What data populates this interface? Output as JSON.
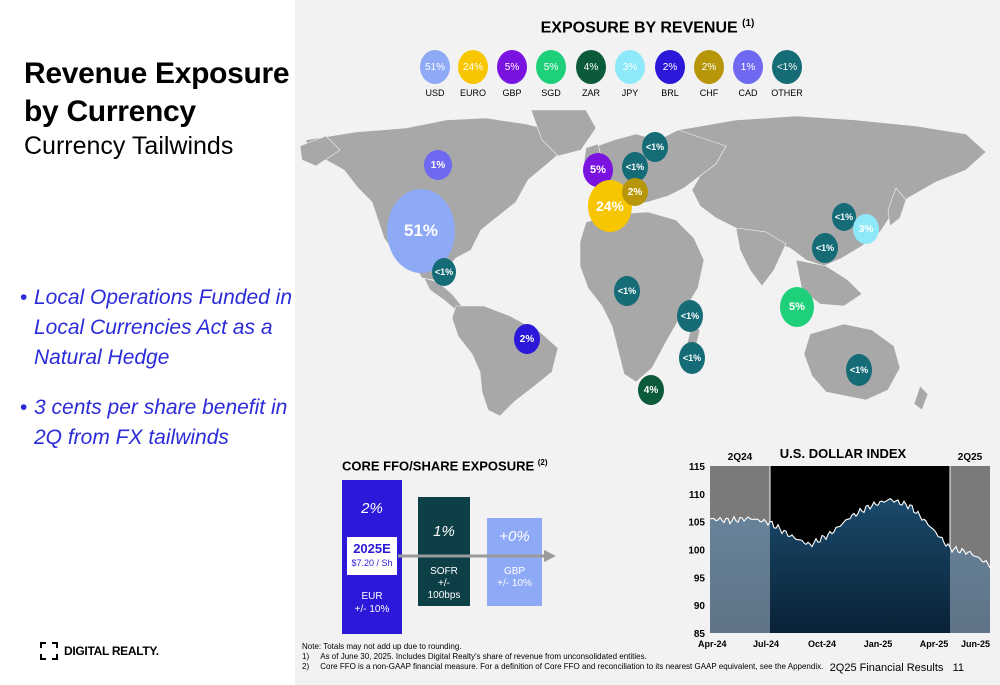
{
  "left": {
    "title_line1": "Revenue Exposure",
    "title_line2": "by Currency",
    "subtitle": "Currency Tailwinds",
    "bullets": [
      "Local Operations Funded in Local Currencies Act as a Natural Hedge",
      "3 cents per share benefit in 2Q from FX tailwinds"
    ],
    "logo_text": "DIGITAL REALTY."
  },
  "exposure": {
    "title": "EXPOSURE BY REVENUE",
    "title_note": "(1)",
    "legend": [
      {
        "value": "51%",
        "label": "USD",
        "color": "#8eaaf6"
      },
      {
        "value": "24%",
        "label": "EURO",
        "color": "#f7c600"
      },
      {
        "value": "5%",
        "label": "GBP",
        "color": "#7a12e0"
      },
      {
        "value": "5%",
        "label": "SGD",
        "color": "#1fd07a"
      },
      {
        "value": "4%",
        "label": "ZAR",
        "color": "#0b5a3a"
      },
      {
        "value": "3%",
        "label": "JPY",
        "color": "#8de8fa"
      },
      {
        "value": "2%",
        "label": "BRL",
        "color": "#2b18d8"
      },
      {
        "value": "2%",
        "label": "CHF",
        "color": "#b8960a"
      },
      {
        "value": "1%",
        "label": "CAD",
        "color": "#6f68f0"
      },
      {
        "value": "<1%",
        "label": "OTHER",
        "color": "#156b76"
      }
    ],
    "map_bubbles": [
      {
        "text": "51%",
        "color": "#8eaaf6"
      },
      {
        "text": "1%",
        "color": "#6f68f0"
      },
      {
        "text": "<1%",
        "color": "#156b76"
      },
      {
        "text": "2%",
        "color": "#2b18d8"
      },
      {
        "text": "5%",
        "color": "#7a12e0"
      },
      {
        "text": "<1%",
        "color": "#156b76"
      },
      {
        "text": "<1%",
        "color": "#156b76"
      },
      {
        "text": "24%",
        "color": "#f7c600"
      },
      {
        "text": "2%",
        "color": "#b8960a"
      },
      {
        "text": "<1%",
        "color": "#156b76"
      },
      {
        "text": "<1%",
        "color": "#156b76"
      },
      {
        "text": "<1%",
        "color": "#156b76"
      },
      {
        "text": "4%",
        "color": "#0b5a3a"
      },
      {
        "text": "<1%",
        "color": "#156b76"
      },
      {
        "text": "3%",
        "color": "#8de8fa"
      },
      {
        "text": "<1%",
        "color": "#156b76"
      },
      {
        "text": "5%",
        "color": "#1fd07a"
      },
      {
        "text": "<1%",
        "color": "#156b76"
      }
    ]
  },
  "core_ffo": {
    "title": "CORE FFO/SHARE EXPOSURE",
    "title_note": "(2)",
    "eur": {
      "pct": "2%",
      "label": "EUR",
      "range": "+/- 10%",
      "color": "#2b18d8"
    },
    "estimate": {
      "label": "2025E",
      "value": "$7.20 / Sh"
    },
    "sofr": {
      "pct": "1%",
      "label": "SOFR",
      "range": "+/-",
      "range2": "100bps",
      "color": "#0d3f47"
    },
    "gbp": {
      "pct": "+0%",
      "label": "GBP",
      "range": "+/- 10%",
      "color": "#8eaaf6"
    }
  },
  "chart_data": {
    "type": "line",
    "title": "U.S. DOLLAR  INDEX",
    "period_labels": [
      "2Q24",
      "2Q25"
    ],
    "x_ticks": [
      "Apr-24",
      "Jul-24",
      "Oct-24",
      "Jan-25",
      "Apr-25",
      "Jun-25"
    ],
    "ylim": [
      85,
      115
    ],
    "y_ticks": [
      85,
      90,
      95,
      100,
      105,
      110,
      115
    ],
    "x": [
      "Apr-24",
      "May-24",
      "Jun-24",
      "Jul-24",
      "Aug-24",
      "Sep-24",
      "Oct-24",
      "Nov-24",
      "Dec-24",
      "Jan-25",
      "Feb-25",
      "Mar-25",
      "Apr-25",
      "May-25",
      "Jun-25"
    ],
    "values": [
      105.5,
      105.2,
      105.6,
      104.8,
      102.5,
      100.8,
      102.8,
      105.8,
      107.8,
      109.0,
      107.8,
      104.2,
      100.2,
      99.4,
      97.2
    ],
    "shaded_periods": [
      "2Q24",
      "2Q25"
    ]
  },
  "notes": {
    "line0": "Note:  Totals may not add up due to rounding.",
    "line1_num": "1)",
    "line1": "As of June 30, 2025.  Includes Digital Realty's share of revenue from unconsolidated entities.",
    "line2_num": "2)",
    "line2": "Core FFO is a non-GAAP financial measure.  For a definition of Core FFO and reconciliation to its nearest GAAP equivalent, see the Appendix."
  },
  "footer": {
    "text": "2Q25 Financial Results",
    "page": "11"
  }
}
